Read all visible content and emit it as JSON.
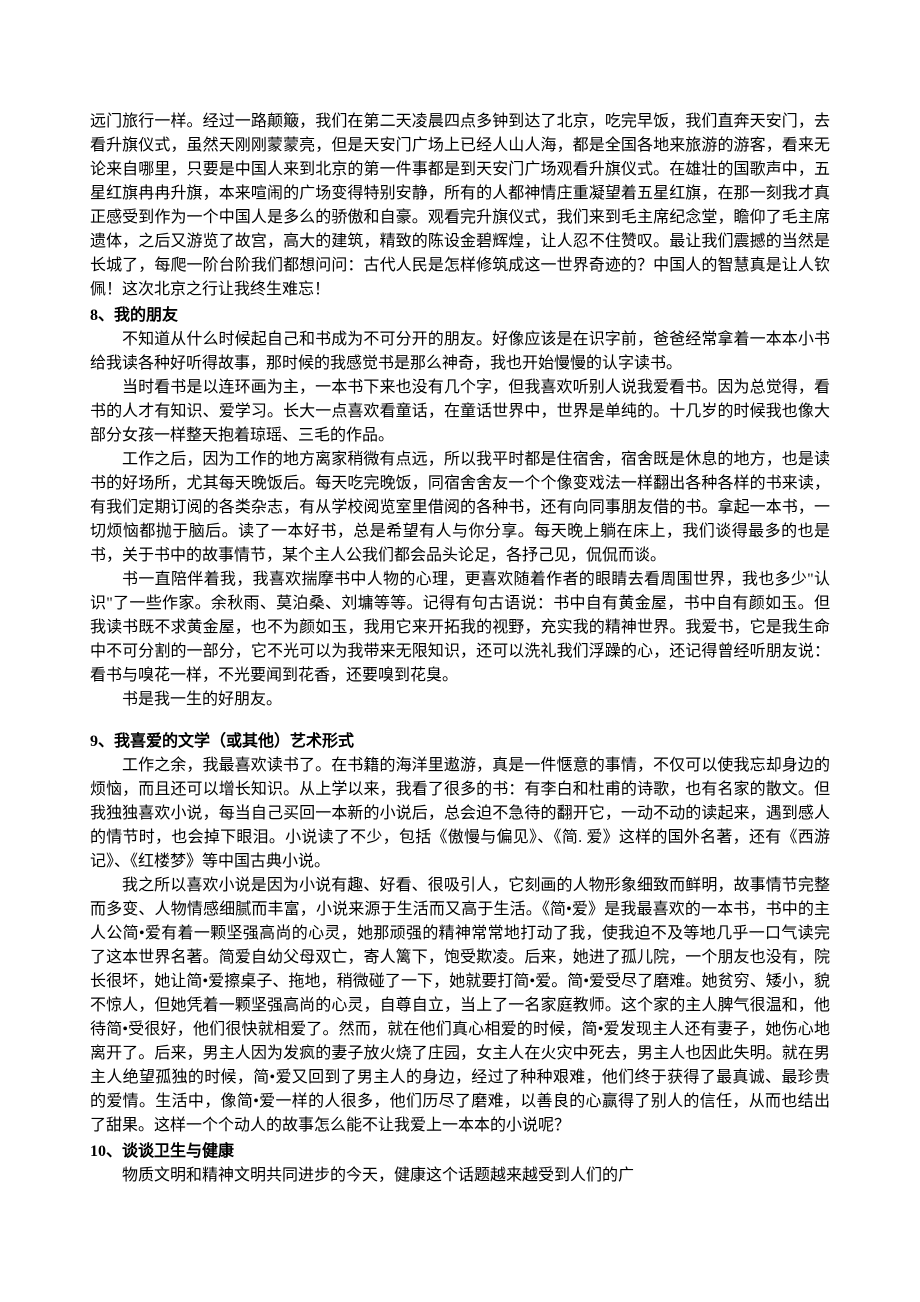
{
  "document": {
    "intro_paragraph": "远门旅行一样。经过一路颠簸，我们在第二天凌晨四点多钟到达了北京，吃完早饭，我们直奔天安门，去看升旗仪式，虽然天刚刚蒙蒙亮，但是天安门广场上已经人山人海，都是全国各地来旅游的游客，看来无论来自哪里，只要是中国人来到北京的第一件事都是到天安门广场观看升旗仪式。在雄壮的国歌声中，五星红旗冉冉升旗，本来喧闹的广场变得特别安静，所有的人都神情庄重凝望着五星红旗，在那一刻我才真正感受到作为一个中国人是多么的骄傲和自豪。观看完升旗仪式，我们来到毛主席纪念堂，瞻仰了毛主席遗体，之后又游览了故宫，高大的建筑，精致的陈设金碧辉煌，让人忍不住赞叹。最让我们震撼的当然是长城了，每爬一阶台阶我们都想问问：古代人民是怎样修筑成这一世界奇迹的？中国人的智慧真是让人钦佩！这次北京之行让我终生难忘！",
    "section8": {
      "heading": "8、我的朋友",
      "p1": "不知道从什么时候起自己和书成为不可分开的朋友。好像应该是在识字前，爸爸经常拿着一本本小书给我读各种好听得故事，那时候的我感觉书是那么神奇，我也开始慢慢的认字读书。",
      "p2": "当时看书是以连环画为主，一本书下来也没有几个字，但我喜欢听别人说我爱看书。因为总觉得，看书的人才有知识、爱学习。长大一点喜欢看童话，在童话世界中，世界是单纯的。十几岁的时候我也像大部分女孩一样整天抱着琼瑶、三毛的作品。",
      "p3": "工作之后，因为工作的地方离家稍微有点远，所以我平时都是住宿舍，宿舍既是休息的地方，也是读书的好场所，尤其每天晚饭后。每天吃完晚饭，同宿舍舍友一个个像变戏法一样翻出各种各样的书来读，有我们定期订阅的各类杂志，有从学校阅览室里借阅的各种书，还有向同事朋友借的书。拿起一本书，一切烦恼都抛于脑后。读了一本好书，总是希望有人与你分享。每天晚上躺在床上，我们谈得最多的也是书，关于书中的故事情节，某个主人公我们都会品头论足，各抒己见，侃侃而谈。",
      "p4": "书一直陪伴着我，我喜欢揣摩书中人物的心理，更喜欢随着作者的眼睛去看周围世界，我也多少\"认识\"了一些作家。余秋雨、莫泊桑、刘墉等等。记得有句古语说：书中自有黄金屋，书中自有颜如玉。但我读书既不求黄金屋，也不为颜如玉，我用它来开拓我的视野，充实我的精神世界。我爱书，它是我生命中不可分割的一部分，它不光可以为我带来无限知识，还可以洗礼我们浮躁的心，还记得曾经听朋友说：看书与嗅花一样，不光要闻到花香，还要嗅到花臭。",
      "p5": "书是我一生的好朋友。"
    },
    "section9": {
      "heading": "9、我喜爱的文学（或其他）艺术形式",
      "p1": "工作之余，我最喜欢读书了。在书籍的海洋里遨游，真是一件惬意的事情，不仅可以使我忘却身边的烦恼，而且还可以增长知识。从上学以来，我看了很多的书：有李白和杜甫的诗歌，也有名家的散文。但我独独喜欢小说，每当自己买回一本新的小说后，总会迫不急待的翻开它，一动不动的读起来，遇到感人的情节时，也会掉下眼泪。小说读了不少，包括《傲慢与偏见》、《简. 爱》这样的国外名著，还有《西游记》、《红楼梦》等中国古典小说。",
      "p2": "我之所以喜欢小说是因为小说有趣、好看、很吸引人，它刻画的人物形象细致而鲜明，故事情节完整而多变、人物情感细腻而丰富，小说来源于生活而又高于生活。《简•爱》是我最喜欢的一本书，书中的主人公简•爱有着一颗坚强高尚的心灵，她那顽强的精神常常地打动了我，使我迫不及等地几乎一口气读完了这本世界名著。简爱自幼父母双亡，寄人篱下，饱受欺凌。后来，她进了孤儿院，一个朋友也没有，院长很坏，她让简•爱擦桌子、拖地，稍微碰了一下，她就要打简•爱。简•爱受尽了磨难。她贫穷、矮小，貌不惊人，但她凭着一颗坚强高尚的心灵，自尊自立，当上了一名家庭教师。这个家的主人脾气很温和，他待简•受很好，他们很快就相爱了。然而，就在他们真心相爱的时候，简•爱发现主人还有妻子，她伤心地离开了。后来，男主人因为发疯的妻子放火烧了庄园，女主人在火灾中死去，男主人也因此失明。就在男主人绝望孤独的时候，简•爱又回到了男主人的身边，经过了种种艰难，他们终于获得了最真诚、最珍贵的爱情。生活中，像简•爱一样的人很多，他们历尽了磨难，以善良的心赢得了别人的信任，从而也结出了甜果。这样一个个动人的故事怎么能不让我爱上一本本的小说呢？"
    },
    "section10": {
      "heading": "10、谈谈卫生与健康",
      "p1": "物质文明和精神文明共同进步的今天，健康这个话题越来越受到人们的广"
    }
  }
}
